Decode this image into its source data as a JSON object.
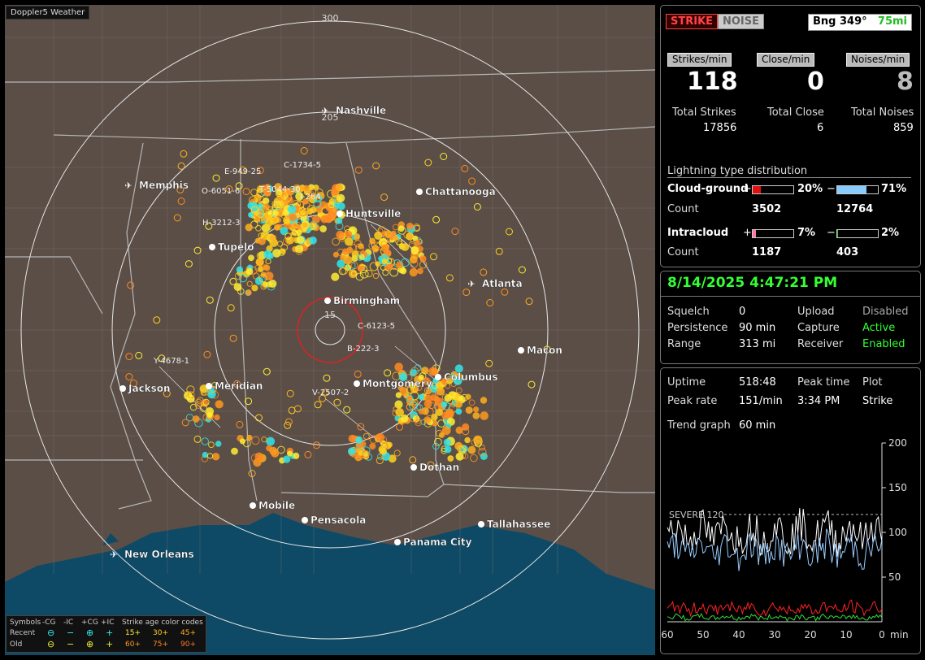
{
  "app": {
    "title": "Doppler5 Weather"
  },
  "map": {
    "range_ring_label_outer": "300",
    "range_ring_label_inner": "205",
    "range_ring_label_center": "15",
    "cities": [
      {
        "name": "Nashville",
        "type": "airport"
      },
      {
        "name": "Memphis",
        "type": "airport"
      },
      {
        "name": "Chattanooga",
        "type": "city"
      },
      {
        "name": "Huntsville",
        "type": "city"
      },
      {
        "name": "Tupelo",
        "type": "city"
      },
      {
        "name": "Birmingham",
        "type": "city"
      },
      {
        "name": "Atlanta",
        "type": "airport"
      },
      {
        "name": "Macon",
        "type": "city"
      },
      {
        "name": "Columbus",
        "type": "city"
      },
      {
        "name": "Montgomery",
        "type": "city"
      },
      {
        "name": "Meridian",
        "type": "city"
      },
      {
        "name": "Jackson",
        "type": "city"
      },
      {
        "name": "Dothan",
        "type": "city"
      },
      {
        "name": "Mobile",
        "type": "city"
      },
      {
        "name": "Pensacola",
        "type": "city"
      },
      {
        "name": "Tallahassee",
        "type": "city"
      },
      {
        "name": "Panama City",
        "type": "city"
      },
      {
        "name": "New Orleans",
        "type": "airport"
      }
    ],
    "storm_labels": [
      "E-949-25",
      "C-1734-5",
      "O-6051-6",
      "T-5044-30",
      "I-284",
      "H-3212-3",
      "C-6123-5",
      "B-222-3",
      "Y-4678-1",
      "V-2507-2"
    ],
    "legend": {
      "symbols_label": "Symbols",
      "headers": [
        "-CG",
        "-IC",
        "+CG",
        "+IC"
      ],
      "rows": [
        {
          "label": "Recent"
        },
        {
          "label": "Old"
        }
      ],
      "age_label": "Strike age color codes",
      "recent_ages": [
        "15+",
        "30+",
        "45+"
      ],
      "old_ages": [
        "60+",
        "75+",
        "90+"
      ]
    }
  },
  "top": {
    "strike_btn": "STRIKE",
    "noise_btn": "NOISE",
    "bearing": "Bng 349°",
    "distance": "75mi",
    "headers": [
      "Strikes/min",
      "Close/min",
      "Noises/min"
    ],
    "rates": [
      "118",
      "0",
      "8"
    ],
    "totals_labels": [
      "Total Strikes",
      "Total Close",
      "Total Noises"
    ],
    "totals": [
      "17856",
      "6",
      "859"
    ],
    "dist_title": "Lightning type distribution",
    "cg": {
      "label": "Cloud-ground",
      "pos_pct": "20%",
      "neg_pct": "71%",
      "pos_count": "3502",
      "neg_count": "12764",
      "pos_frac": 0.2,
      "neg_frac": 0.71
    },
    "ic": {
      "label": "Intracloud",
      "pos_pct": "7%",
      "neg_pct": "2%",
      "pos_count": "1187",
      "neg_count": "403",
      "pos_frac": 0.07,
      "neg_frac": 0.02
    },
    "count_label": "Count",
    "plus": "+",
    "minus": "−"
  },
  "status": {
    "datetime": "8/14/2025 4:47:21 PM",
    "rows": [
      {
        "l": "Squelch",
        "v": "0",
        "l2": "Upload",
        "v2": "Disabled"
      },
      {
        "l": "Persistence",
        "v": "90 min",
        "l2": "Capture",
        "v2": "Active"
      },
      {
        "l": "Range",
        "v": "313 mi",
        "l2": "Receiver",
        "v2": "Enabled"
      }
    ]
  },
  "trend": {
    "uptime_l": "Uptime",
    "uptime": "518:48",
    "peak_time_l": "Peak time",
    "plot_l": "Plot",
    "peak_rate_l": "Peak rate",
    "peak_rate": "151/min",
    "peak_time": "3:34 PM",
    "plot": "Strike",
    "graph_l": "Trend graph",
    "graph": "60 min",
    "severe": "SEVERE 120",
    "y_ticks": [
      "200",
      "150",
      "100",
      "50"
    ],
    "x_ticks": [
      "60",
      "50",
      "40",
      "30",
      "20",
      "10",
      "0"
    ],
    "x_unit": "min",
    "colors": {
      "strike": "#ffffff",
      "cg": "#99ccff",
      "noise": "#ff2222",
      "ic": "#33dd33"
    }
  }
}
